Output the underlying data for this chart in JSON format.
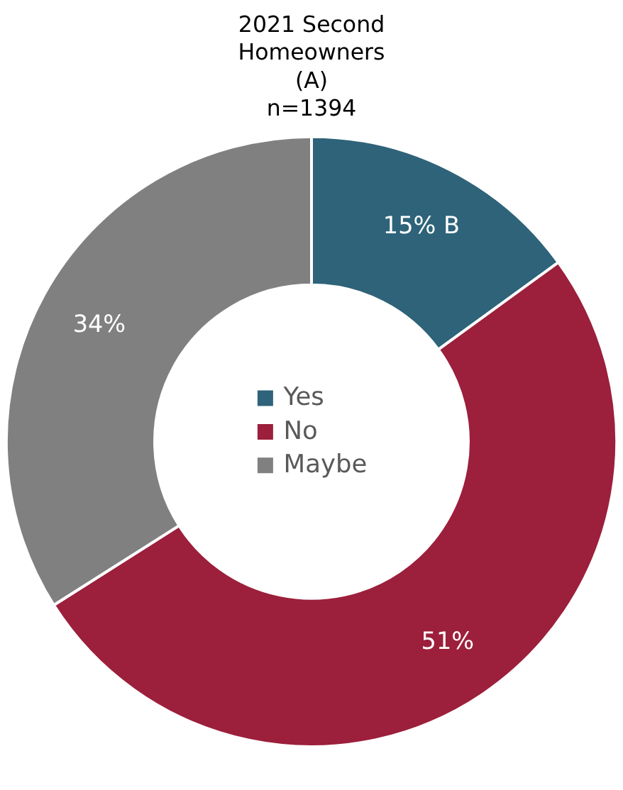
{
  "chart_data": {
    "type": "donut",
    "title": "2021 Second\nHomeowners\n(A)\nn=1394",
    "categories": [
      "Yes",
      "No",
      "Maybe"
    ],
    "values": [
      15,
      51,
      34
    ],
    "colors": [
      "#2e6379",
      "#9c1f3b",
      "#808080"
    ],
    "value_labels": [
      "15% B",
      "51%",
      "34%"
    ],
    "legend": "center"
  }
}
